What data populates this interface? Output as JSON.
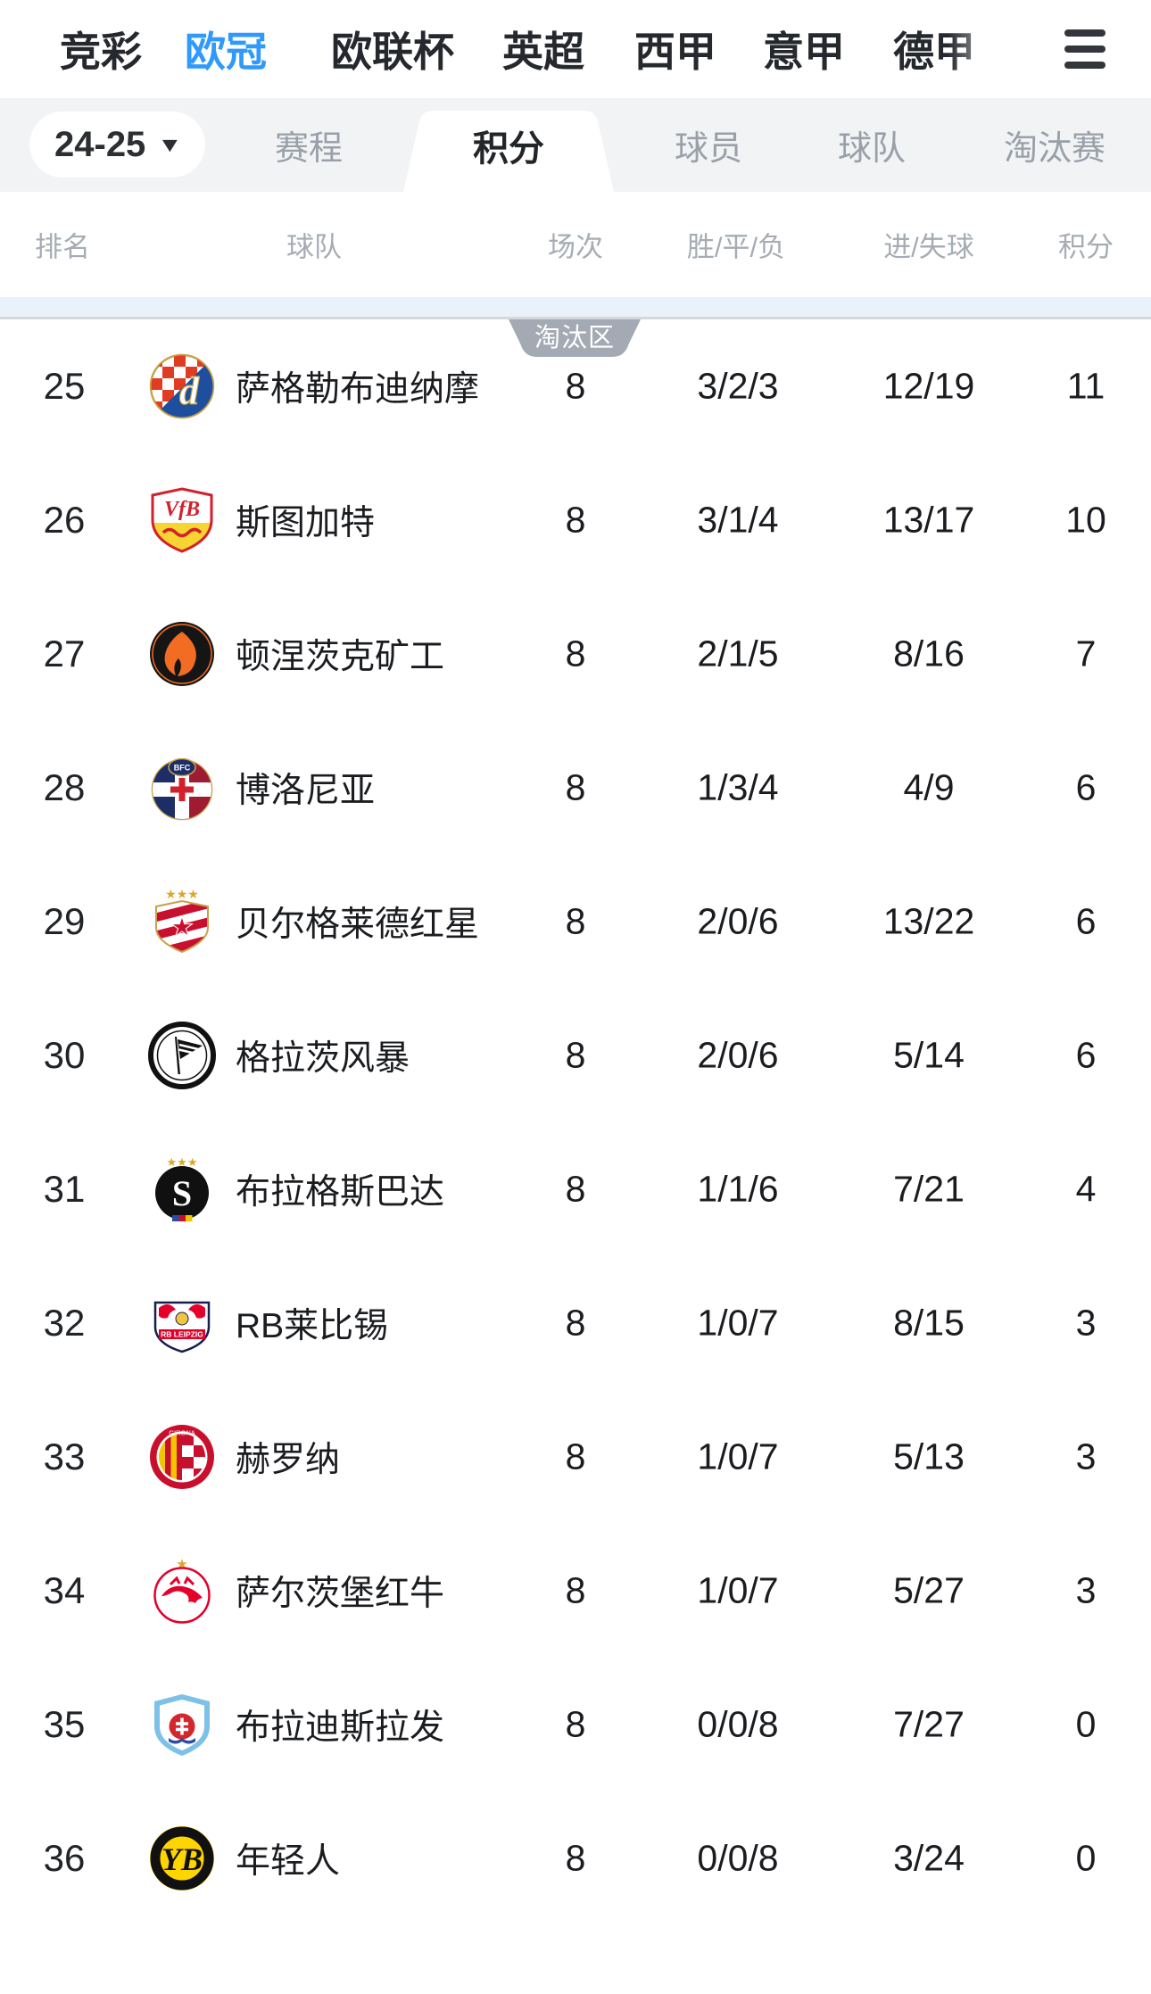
{
  "top_nav": {
    "items": [
      {
        "label": "竞彩",
        "active": false
      },
      {
        "label": "欧冠",
        "active": true
      },
      {
        "label": "欧联杯",
        "active": false
      },
      {
        "label": "英超",
        "active": false
      },
      {
        "label": "西甲",
        "active": false
      },
      {
        "label": "意甲",
        "active": false
      },
      {
        "label": "德甲",
        "active": false
      }
    ],
    "menu_icon": "hamburger-icon"
  },
  "subbar": {
    "season": "24-25",
    "caret_icon": "▼",
    "tabs": [
      {
        "label": "赛程",
        "active": false
      },
      {
        "label": "积分",
        "active": true
      },
      {
        "label": "球员",
        "active": false
      },
      {
        "label": "球队",
        "active": false
      },
      {
        "label": "淘汰赛",
        "active": false
      }
    ]
  },
  "table": {
    "columns": [
      "排名",
      "球队",
      "场次",
      "胜/平/负",
      "进/失球",
      "积分"
    ],
    "zone_label": "淘汰区",
    "rows": [
      {
        "rank": "25",
        "team": "萨格勒布迪纳摩",
        "logo": "dinamo-zagreb",
        "played": "8",
        "wdl": "3/2/3",
        "goals": "12/19",
        "points": "11"
      },
      {
        "rank": "26",
        "team": "斯图加特",
        "logo": "stuttgart",
        "played": "8",
        "wdl": "3/1/4",
        "goals": "13/17",
        "points": "10"
      },
      {
        "rank": "27",
        "team": "顿涅茨克矿工",
        "logo": "shakhtar-donetsk",
        "played": "8",
        "wdl": "2/1/5",
        "goals": "8/16",
        "points": "7"
      },
      {
        "rank": "28",
        "team": "博洛尼亚",
        "logo": "bologna",
        "played": "8",
        "wdl": "1/3/4",
        "goals": "4/9",
        "points": "6"
      },
      {
        "rank": "29",
        "team": "贝尔格莱德红星",
        "logo": "red-star-belgrade",
        "played": "8",
        "wdl": "2/0/6",
        "goals": "13/22",
        "points": "6"
      },
      {
        "rank": "30",
        "team": "格拉茨风暴",
        "logo": "sturm-graz",
        "played": "8",
        "wdl": "2/0/6",
        "goals": "5/14",
        "points": "6"
      },
      {
        "rank": "31",
        "team": "布拉格斯巴达",
        "logo": "sparta-prague",
        "played": "8",
        "wdl": "1/1/6",
        "goals": "7/21",
        "points": "4"
      },
      {
        "rank": "32",
        "team": "RB莱比锡",
        "logo": "rb-leipzig",
        "played": "8",
        "wdl": "1/0/7",
        "goals": "8/15",
        "points": "3"
      },
      {
        "rank": "33",
        "team": "赫罗纳",
        "logo": "girona",
        "played": "8",
        "wdl": "1/0/7",
        "goals": "5/13",
        "points": "3"
      },
      {
        "rank": "34",
        "team": "萨尔茨堡红牛",
        "logo": "rb-salzburg",
        "played": "8",
        "wdl": "1/0/7",
        "goals": "5/27",
        "points": "3"
      },
      {
        "rank": "35",
        "team": "布拉迪斯拉发",
        "logo": "slovan-bratislava",
        "played": "8",
        "wdl": "0/0/8",
        "goals": "7/27",
        "points": "0"
      },
      {
        "rank": "36",
        "team": "年轻人",
        "logo": "young-boys",
        "played": "8",
        "wdl": "0/0/8",
        "goals": "3/24",
        "points": "0"
      }
    ]
  },
  "colors": {
    "accent_blue": "#2f99fc",
    "bar_gray": "#f2f3f5",
    "zone_strip_blue": "#e9f2fb",
    "zone_badge_gray": "#a3aab4",
    "header_text_gray": "#a6acb3",
    "body_text": "#1a1c1f"
  }
}
